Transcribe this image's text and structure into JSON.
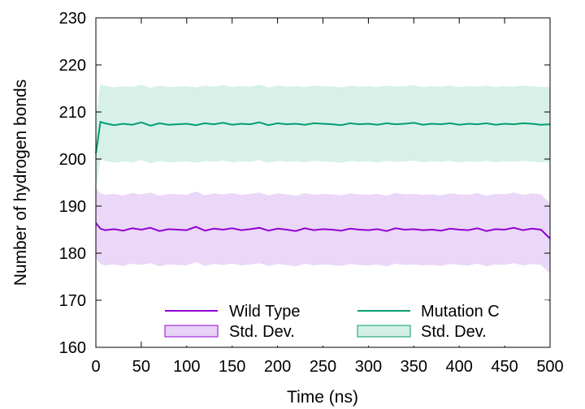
{
  "chart_data": {
    "type": "line",
    "xlabel": "Time (ns)",
    "ylabel": "Number of hydrogen bonds",
    "xlim": [
      0,
      500
    ],
    "ylim": [
      160,
      230
    ],
    "xticks": [
      0,
      50,
      100,
      150,
      200,
      250,
      300,
      350,
      400,
      450,
      500
    ],
    "yticks": [
      160,
      170,
      180,
      190,
      200,
      210,
      220,
      230
    ],
    "grid": false,
    "legend_position": "bottom",
    "colors": {
      "wild_type_line": "#9400d3",
      "wild_type_band": "#e9d3f7",
      "mutation_line": "#009e73",
      "mutation_band": "#d3efe6"
    },
    "series": [
      {
        "name": "Wild Type",
        "x": [
          0,
          5,
          10,
          20,
          30,
          40,
          50,
          60,
          70,
          80,
          90,
          100,
          110,
          120,
          130,
          140,
          150,
          160,
          170,
          180,
          190,
          200,
          210,
          220,
          230,
          240,
          250,
          260,
          270,
          280,
          290,
          300,
          310,
          320,
          330,
          340,
          350,
          360,
          370,
          380,
          390,
          400,
          410,
          420,
          430,
          440,
          450,
          460,
          470,
          480,
          490,
          500
        ],
        "values": [
          186.4,
          185.2,
          184.9,
          185.1,
          184.8,
          185.3,
          185.0,
          185.4,
          184.7,
          185.1,
          185.0,
          184.9,
          185.6,
          184.8,
          185.2,
          185.0,
          185.3,
          184.9,
          185.1,
          185.4,
          184.8,
          185.2,
          185.0,
          184.7,
          185.3,
          184.9,
          185.1,
          185.0,
          184.8,
          185.2,
          185.0,
          184.9,
          185.1,
          184.7,
          185.3,
          185.0,
          185.1,
          184.9,
          185.0,
          184.8,
          185.2,
          185.0,
          184.9,
          185.3,
          184.7,
          185.1,
          185.0,
          185.4,
          184.9,
          185.2,
          185.0,
          183.1
        ],
        "std_dev": 7.5,
        "std_dev_label": "Std. Dev."
      },
      {
        "name": "Mutation C",
        "x": [
          0,
          5,
          10,
          20,
          30,
          40,
          50,
          60,
          70,
          80,
          90,
          100,
          110,
          120,
          130,
          140,
          150,
          160,
          170,
          180,
          190,
          200,
          210,
          220,
          230,
          240,
          250,
          260,
          270,
          280,
          290,
          300,
          310,
          320,
          330,
          340,
          350,
          360,
          370,
          380,
          390,
          400,
          410,
          420,
          430,
          440,
          450,
          460,
          470,
          480,
          490,
          500
        ],
        "values": [
          201.2,
          207.9,
          207.6,
          207.2,
          207.5,
          207.3,
          207.8,
          207.1,
          207.6,
          207.3,
          207.4,
          207.5,
          207.2,
          207.6,
          207.4,
          207.7,
          207.3,
          207.5,
          207.4,
          207.8,
          207.2,
          207.6,
          207.4,
          207.5,
          207.3,
          207.6,
          207.5,
          207.4,
          207.2,
          207.6,
          207.4,
          207.5,
          207.3,
          207.6,
          207.4,
          207.5,
          207.7,
          207.3,
          207.5,
          207.4,
          207.6,
          207.3,
          207.5,
          207.4,
          207.6,
          207.3,
          207.5,
          207.4,
          207.6,
          207.5,
          207.3,
          207.4
        ],
        "std_dev": 8.0,
        "std_dev_label": "Std. Dev."
      }
    ]
  }
}
